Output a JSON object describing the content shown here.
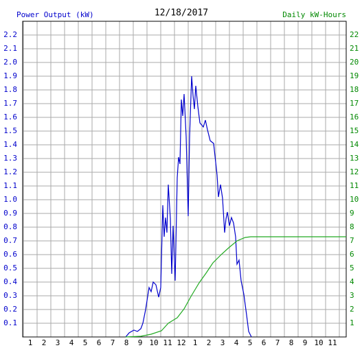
{
  "chart_data": {
    "type": "line",
    "title": "12/18/2017",
    "y_label": "Power Output (kW)",
    "y2_label": "Daily kW-Hours",
    "xlim": [
      0.45,
      24
    ],
    "xgrid": [
      0.5,
      1.5,
      2.5,
      3.5,
      4.5,
      5.5,
      6.5,
      7.5,
      8.5,
      9.5,
      10.5,
      11.5,
      12.5,
      13.5,
      14.5,
      15.5,
      16.5,
      17.5,
      18.5,
      19.5,
      20.5,
      21.5,
      22.5,
      23.5
    ],
    "xticks": [
      1,
      2,
      3,
      4,
      5,
      6,
      7,
      8,
      9,
      10,
      11,
      12,
      {
        "value": 13,
        "label": "1"
      },
      {
        "value": 14,
        "label": "2"
      },
      {
        "value": 15,
        "label": "3"
      },
      {
        "value": 16,
        "label": "4"
      },
      {
        "value": 17,
        "label": "5"
      },
      {
        "value": 18,
        "label": "6"
      },
      {
        "value": 19,
        "label": "7"
      },
      {
        "value": 20,
        "label": "8"
      },
      {
        "value": 21,
        "label": "9"
      },
      {
        "value": 22,
        "label": "10"
      },
      {
        "value": 23,
        "label": "11"
      }
    ],
    "ylim": [
      0,
      2.3
    ],
    "yticks": [
      0.1,
      0.2,
      0.3,
      0.4,
      0.5,
      0.6,
      0.7,
      0.8,
      0.9,
      {
        "value": 1,
        "label": "1.0"
      },
      1.1,
      1.2,
      1.3,
      1.4,
      1.5,
      1.6,
      1.7,
      1.8,
      1.9,
      {
        "value": 2,
        "label": "2.0"
      },
      2.1,
      2.2
    ],
    "y2lim": [
      0,
      23
    ],
    "y2ticks": [
      1,
      2,
      3,
      4,
      5,
      6,
      7,
      8,
      9,
      10,
      11,
      12,
      13,
      14,
      15,
      16,
      17,
      18,
      19,
      20,
      21,
      22
    ],
    "grid": true,
    "series": [
      {
        "name": "Power Output",
        "color": "#0000cc",
        "x": [
          7.95,
          8.2,
          8.55,
          8.8,
          9.05,
          9.2,
          9.4,
          9.65,
          9.8,
          9.95,
          10.15,
          10.35,
          10.5,
          10.65,
          10.75,
          10.85,
          10.95,
          11.05,
          11.2,
          11.3,
          11.4,
          11.55,
          11.7,
          11.8,
          11.9,
          12.0,
          12.1,
          12.2,
          12.35,
          12.5,
          12.6,
          12.75,
          12.85,
          12.95,
          13.05,
          13.2,
          13.35,
          13.6,
          13.75,
          13.9,
          14.1,
          14.35,
          14.6,
          14.7,
          14.85,
          15.0,
          15.15,
          15.25,
          15.35,
          15.5,
          15.65,
          15.8,
          15.95,
          16.05,
          16.2,
          16.35,
          16.55,
          16.75,
          16.9,
          17.1
        ],
        "values": [
          0,
          0.03,
          0.05,
          0.04,
          0.06,
          0.1,
          0.2,
          0.36,
          0.33,
          0.4,
          0.38,
          0.29,
          0.36,
          0.96,
          0.73,
          0.87,
          0.76,
          1.11,
          0.86,
          0.46,
          0.81,
          0.41,
          1.16,
          1.31,
          1.26,
          1.73,
          1.61,
          1.77,
          1.46,
          0.88,
          1.46,
          1.9,
          1.76,
          1.66,
          1.83,
          1.68,
          1.56,
          1.53,
          1.58,
          1.51,
          1.43,
          1.41,
          1.18,
          1.02,
          1.11,
          1.01,
          0.76,
          0.86,
          0.91,
          0.81,
          0.87,
          0.83,
          0.73,
          0.53,
          0.56,
          0.41,
          0.31,
          0.16,
          0.04,
          0
        ]
      },
      {
        "name": "Daily kW-Hours",
        "color": "#22aa22",
        "axis": "y2",
        "x": [
          7.95,
          9.05,
          9.8,
          10.55,
          11.05,
          11.7,
          12.2,
          12.7,
          13.3,
          13.8,
          14.3,
          14.9,
          15.45,
          16.05,
          16.65,
          17.05,
          24
        ],
        "values": [
          0,
          0.05,
          0.2,
          0.45,
          1.0,
          1.4,
          2.05,
          2.95,
          3.95,
          4.65,
          5.4,
          6.0,
          6.5,
          7.0,
          7.25,
          7.3,
          7.3
        ]
      }
    ]
  }
}
